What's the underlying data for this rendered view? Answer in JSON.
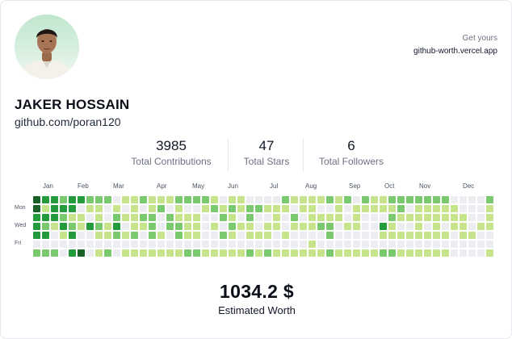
{
  "profile": {
    "name": "JAKER HOSSAIN",
    "github_url": "github.com/poran120",
    "avatar_icon": "person-photo"
  },
  "promo": {
    "caption": "Get yours",
    "link": "github-worth.vercel.app"
  },
  "stats": [
    {
      "value": "3985",
      "label": "Total Contributions"
    },
    {
      "value": "47",
      "label": "Total Stars"
    },
    {
      "value": "6",
      "label": "Total Followers"
    }
  ],
  "calendar": {
    "months": [
      "Jan",
      "Feb",
      "Mar",
      "Apr",
      "May",
      "Jun",
      "Jul",
      "Aug",
      "Sep",
      "Oct",
      "Nov",
      "Dec"
    ],
    "day_labels": [
      "Mon",
      "Wed",
      "Fri"
    ],
    "colors": [
      "#ebedf0",
      "#c6e48b",
      "#7bc96f",
      "#239a3b",
      "#196127"
    ],
    "grid": [
      "4332332220112111222210110000211112120211222222200002",
      "4133301101010120100121212211101100101111120111110001",
      "3332110102112202111002102001020111101000211111111001",
      "3213213213011202211010211011011122011003100101011011",
      "3301300112120210211002101110100002000001111111101100",
      "0000000000000000000000000000000100000000000000000000",
      "2220340120111111122111112121111112111112211111100001"
    ]
  },
  "worth": {
    "value": "1034.2 $",
    "caption": "Estimated Worth"
  }
}
